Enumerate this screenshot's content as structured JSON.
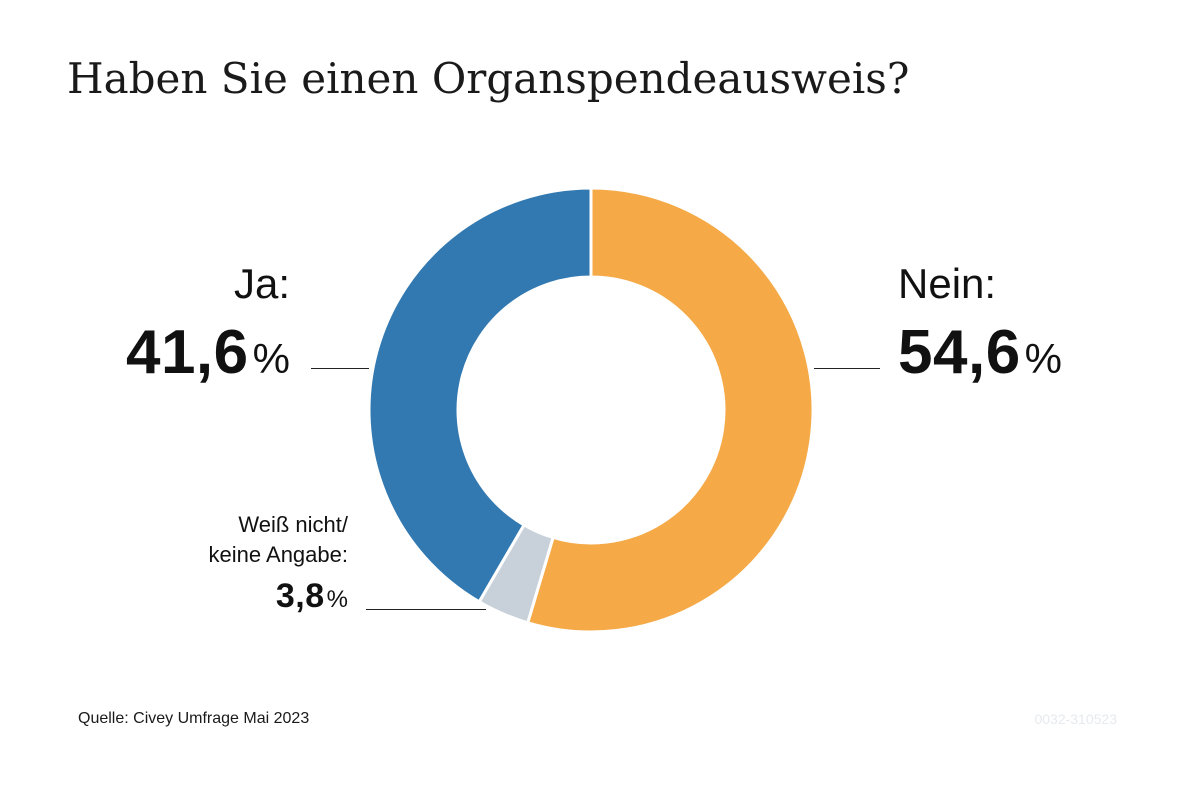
{
  "title": "Haben Sie einen Organspendeausweis?",
  "chart_data": {
    "type": "pie",
    "donut": true,
    "title": "Haben Sie einen Organspendeausweis?",
    "unit": "%",
    "slices": [
      {
        "label": "Nein:",
        "value": 54.6,
        "value_text": "54,6",
        "color": "#f5a947"
      },
      {
        "label": "Weiß nicht/ keine Angabe:",
        "label_lines": [
          "Weiß nicht/",
          "keine Angabe:"
        ],
        "value": 3.8,
        "value_text": "3,8",
        "color": "#c8d1da"
      },
      {
        "label": "Ja:",
        "value": 41.6,
        "value_text": "41,6",
        "color": "#3279b1"
      }
    ]
  },
  "source": "Quelle: Civey Umfrage Mai 2023",
  "watermark": "0032-310523"
}
